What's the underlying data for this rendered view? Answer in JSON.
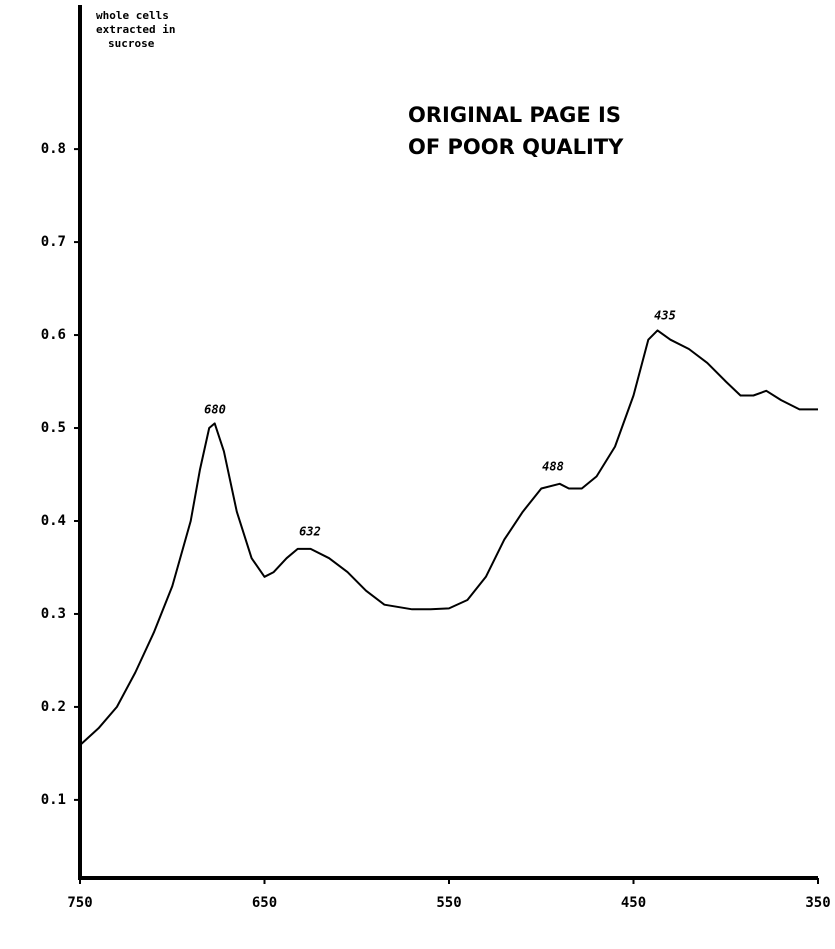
{
  "chart_data": {
    "type": "line",
    "annotations": [
      "whole cells",
      "extracted in",
      "sucrose"
    ],
    "stamp": [
      "ORIGINAL PAGE IS",
      "OF POOR QUALITY"
    ],
    "peak_labels": [
      "680",
      "632",
      "488",
      "435"
    ],
    "x": [
      750,
      740,
      730,
      720,
      710,
      700,
      690,
      685,
      680,
      677,
      672,
      665,
      657,
      650,
      645,
      638,
      632,
      625,
      615,
      605,
      595,
      585,
      570,
      560,
      550,
      540,
      530,
      520,
      510,
      500,
      490,
      485,
      478,
      470,
      460,
      450,
      442,
      437,
      430,
      420,
      410,
      400,
      392,
      385,
      378,
      370,
      360,
      350
    ],
    "values": [
      0.159,
      0.177,
      0.2,
      0.237,
      0.28,
      0.33,
      0.4,
      0.455,
      0.5,
      0.505,
      0.475,
      0.41,
      0.36,
      0.34,
      0.345,
      0.36,
      0.37,
      0.37,
      0.36,
      0.345,
      0.325,
      0.31,
      0.305,
      0.305,
      0.306,
      0.315,
      0.34,
      0.38,
      0.41,
      0.435,
      0.44,
      0.435,
      0.435,
      0.448,
      0.48,
      0.535,
      0.595,
      0.605,
      0.595,
      0.585,
      0.57,
      0.55,
      0.535,
      0.535,
      0.54,
      0.53,
      0.52,
      0.52
    ],
    "color": "#000000",
    "xlim": [
      750,
      350
    ],
    "xticks": [
      750,
      650,
      550,
      450,
      350
    ],
    "ylim": [
      0.016,
      0.955
    ],
    "yticks": [
      0.1,
      0.2,
      0.3,
      0.4,
      0.5,
      0.6,
      0.7,
      0.8
    ],
    "grid": false
  }
}
